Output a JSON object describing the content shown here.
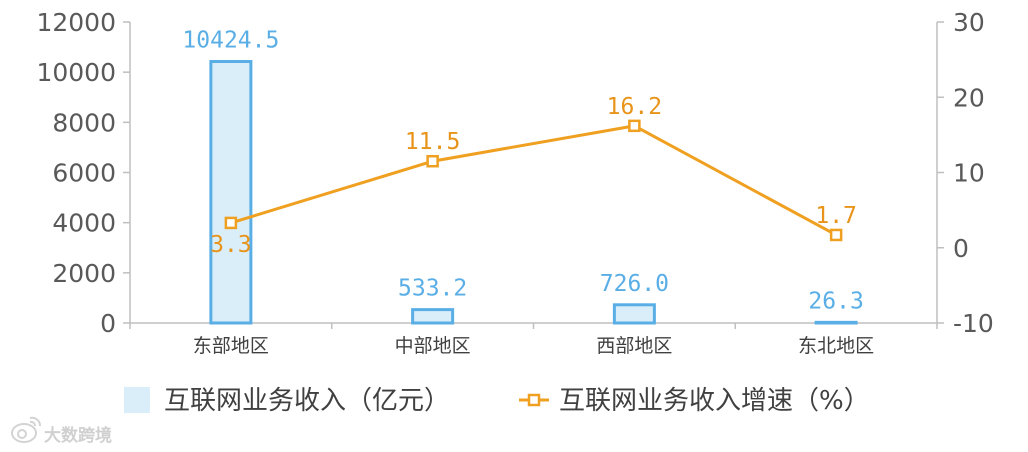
{
  "chart_data": {
    "type": "bar",
    "categories": [
      "东部地区",
      "中部地区",
      "西部地区",
      "东北地区"
    ],
    "series": [
      {
        "name": "互联网业务收入（亿元）",
        "type": "bar",
        "axis": "left",
        "values": [
          10424.5,
          533.2,
          726.0,
          26.3
        ],
        "labels": [
          "10424.5",
          "533.2",
          "726.0",
          "26.3"
        ]
      },
      {
        "name": "互联网业务收入增速（%）",
        "type": "line",
        "axis": "right",
        "values": [
          3.3,
          11.5,
          16.2,
          1.7
        ],
        "labels": [
          "3.3",
          "11.5",
          "16.2",
          "1.7"
        ]
      }
    ],
    "y_left": {
      "min": 0,
      "max": 12000,
      "ticks": [
        "0",
        "2000",
        "4000",
        "6000",
        "8000",
        "10000",
        "12000"
      ]
    },
    "y_right": {
      "min": -10,
      "max": 30,
      "ticks": [
        "-10",
        "0",
        "10",
        "20",
        "30"
      ]
    },
    "grid": false,
    "legend_position": "bottom"
  },
  "colors": {
    "bar_fill": "#daeefa",
    "bar_stroke": "#5aaee6",
    "bar_label": "#5aaee6",
    "line": "#f0a020",
    "line_label": "#e8941a",
    "axis": "#bfbfbf"
  },
  "watermark": {
    "text": "大数跨境"
  }
}
